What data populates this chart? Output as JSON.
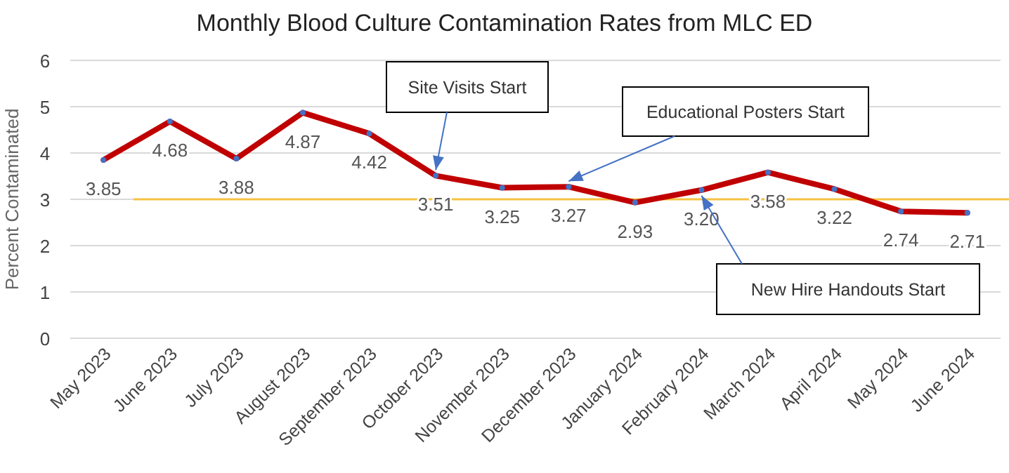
{
  "chart_data": {
    "type": "line",
    "title": "Monthly Blood Culture Contamination Rates from MLC ED",
    "ylabel": "Percent Contaminated",
    "categories": [
      "May 2023",
      "June 2023",
      "July 2023",
      "August 2023",
      "September 2023",
      "October 2023",
      "November 2023",
      "December 2023",
      "January 2024",
      "February 2024",
      "March 2024",
      "April 2024",
      "May 2024",
      "June 2024"
    ],
    "series": [
      {
        "color": "#c00000",
        "values": [
          3.85,
          4.68,
          3.88,
          4.87,
          4.42,
          3.51,
          3.25,
          3.27,
          2.93,
          3.2,
          3.58,
          3.22,
          2.74,
          2.71
        ]
      }
    ],
    "value_labels": [
      "3.85",
      "4.68",
      "3.88",
      "4.87",
      "4.42",
      "3.51",
      "3.25",
      "3.27",
      "2.93",
      "3.20",
      "3.58",
      "3.22",
      "2.74",
      "2.71"
    ],
    "ylim": [
      0,
      6
    ],
    "yticks": [
      0,
      1,
      2,
      3,
      4,
      5,
      6
    ],
    "grid": "y",
    "marker": "circle",
    "ref_lines": [
      {
        "axis": "y",
        "value": 3,
        "color": "#f5c342"
      }
    ],
    "annotations": [
      {
        "text": "Site Visits Start",
        "x": "October 2023",
        "y": 3.51
      },
      {
        "text": "Educational Posters Start",
        "x": "December 2023",
        "y": 3.27
      },
      {
        "text": "New Hire Handouts Start",
        "x": "February 2024",
        "y": 3.2
      }
    ]
  }
}
